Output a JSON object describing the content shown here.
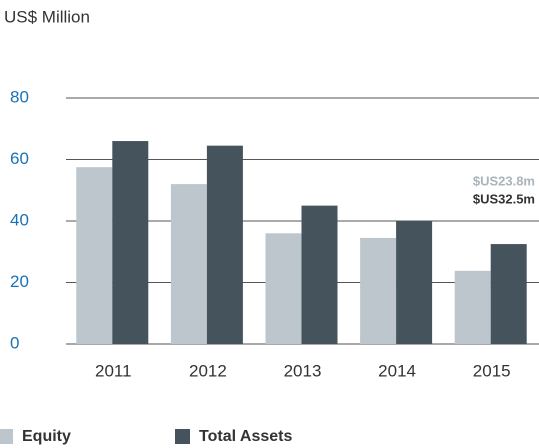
{
  "chart_data": {
    "type": "bar",
    "axis_label": "US$ Million",
    "categories": [
      "2011",
      "2012",
      "2013",
      "2014",
      "2015"
    ],
    "series": [
      {
        "name": "Equity",
        "color": "#bcc6cc",
        "values": [
          57.5,
          52,
          36,
          34.5,
          23.8
        ],
        "value_labels": [
          null,
          null,
          null,
          null,
          "$US23.8m"
        ]
      },
      {
        "name": "Total Assets",
        "color": "#45535c",
        "values": [
          66,
          64.5,
          45,
          40,
          32.5
        ],
        "value_labels": [
          null,
          null,
          null,
          null,
          "$US32.5m"
        ]
      }
    ],
    "ylim": [
      0,
      80
    ],
    "yticks": [
      0,
      20,
      40,
      60,
      80
    ],
    "grid": true,
    "legend": "bottom"
  }
}
